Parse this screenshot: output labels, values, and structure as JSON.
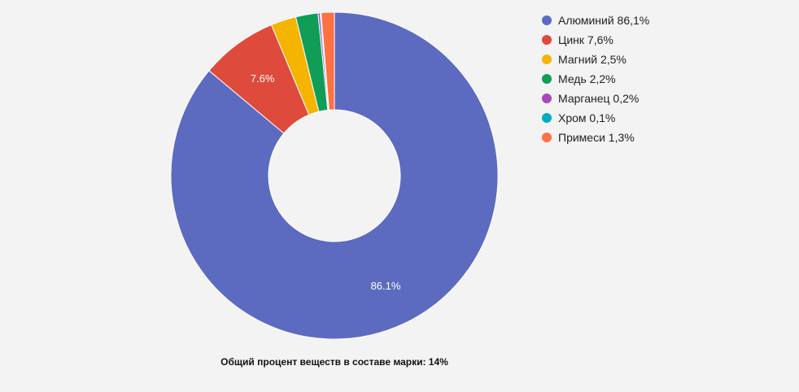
{
  "chart_data": {
    "type": "pie",
    "donut": true,
    "slices": [
      {
        "label": "Алюминий 86,1%",
        "value": 86.1,
        "color": "#5c6bc0",
        "data_label": "86.1%"
      },
      {
        "label": "Цинк 7,6%",
        "value": 7.6,
        "color": "#de4a3c",
        "data_label": "7.6%"
      },
      {
        "label": "Магний 2,5%",
        "value": 2.5,
        "color": "#f4b400",
        "data_label": ""
      },
      {
        "label": "Медь 2,2%",
        "value": 2.2,
        "color": "#0f9d58",
        "data_label": ""
      },
      {
        "label": "Марганец 0,2%",
        "value": 0.2,
        "color": "#ab47bc",
        "data_label": ""
      },
      {
        "label": "Хром 0,1%",
        "value": 0.1,
        "color": "#00acc1",
        "data_label": ""
      },
      {
        "label": "Примеси 1,3%",
        "value": 1.3,
        "color": "#ff7043",
        "data_label": ""
      }
    ],
    "legend_position": "right",
    "caption": "Общий процент веществ в составе марки: 14%"
  }
}
